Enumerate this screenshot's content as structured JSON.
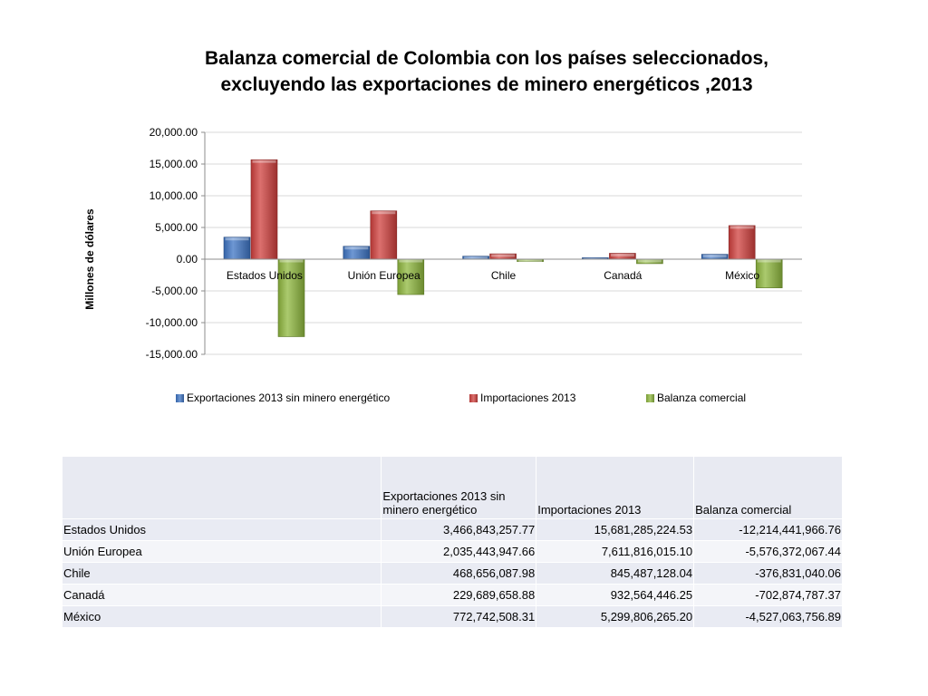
{
  "chart_data": {
    "type": "bar",
    "title_lines": [
      "Balanza comercial de Colombia con los países seleccionados,",
      "excluyendo las exportaciones de minero energéticos ,2013"
    ],
    "ylabel": "Millones de dólares",
    "ylim": [
      -15000,
      20000
    ],
    "yticks": [
      20000,
      15000,
      10000,
      5000,
      0,
      -5000,
      -10000,
      -15000
    ],
    "ytick_labels": [
      "20,000.00",
      "15,000.00",
      "10,000.00",
      "5,000.00",
      "0.00",
      "-5,000.00",
      "-10,000.00",
      "-15,000.00"
    ],
    "grid": true,
    "legend_position": "bottom",
    "categories": [
      "Estados Unidos",
      "Unión Europea",
      "Chile",
      "Canadá",
      "México"
    ],
    "series": [
      {
        "name": "Exportaciones 2013 sin minero energético",
        "color": "#3d74c4",
        "values": [
          3466.84,
          2035.44,
          468.66,
          229.69,
          772.74
        ]
      },
      {
        "name": "Importaciones 2013",
        "color": "#d0403d",
        "values": [
          15681.29,
          7611.82,
          845.49,
          932.56,
          5299.81
        ]
      },
      {
        "name": "Balanza comercial",
        "color": "#8fb83e",
        "values": [
          -12214.44,
          -5576.37,
          -376.83,
          -702.87,
          -4527.06
        ]
      }
    ]
  },
  "table": {
    "headers": [
      "",
      "Exportaciones  2013 sin minero energético",
      "Importaciones 2013",
      "Balanza comercial"
    ],
    "rows": [
      [
        "Estados Unidos",
        "3,466,843,257.77",
        "15,681,285,224.53",
        "-12,214,441,966.76"
      ],
      [
        "Unión Europea",
        "2,035,443,947.66",
        "7,611,816,015.10",
        "-5,576,372,067.44"
      ],
      [
        "Chile",
        "468,656,087.98",
        "845,487,128.04",
        "-376,831,040.06"
      ],
      [
        "Canadá",
        "229,689,658.88",
        "932,564,446.25",
        "-702,874,787.37"
      ],
      [
        "México",
        "772,742,508.31",
        "5,299,806,265.20",
        "-4,527,063,756.89"
      ]
    ]
  }
}
